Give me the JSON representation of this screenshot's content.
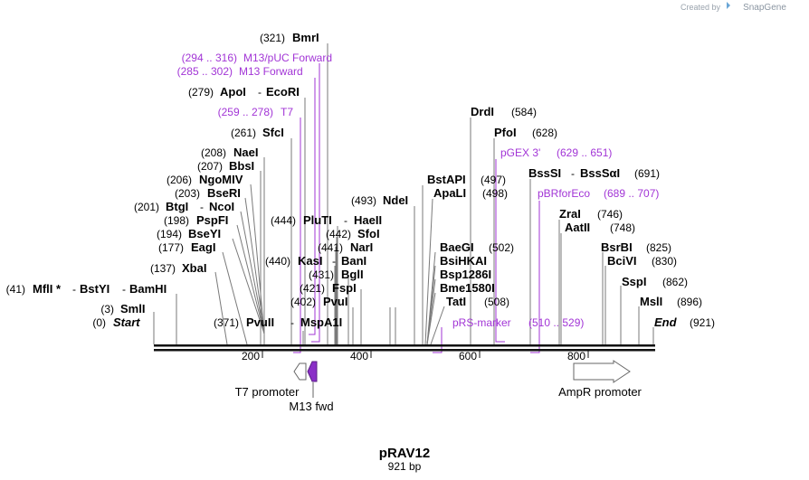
{
  "credit": {
    "created_by": "Created by",
    "logo": "SnapGene"
  },
  "plasmid": {
    "name": "pRAV12",
    "length": "921 bp"
  },
  "axis": {
    "ticks": [
      "200",
      "400",
      "600",
      "800"
    ]
  },
  "sites": {
    "bmri": {
      "pos": "(321)",
      "name": "BmrI"
    },
    "apoi": {
      "pos": "(279)",
      "name": "ApoI",
      "sep": "-",
      "name2": "EcoRI"
    },
    "sfci": {
      "pos": "(261)",
      "name": "SfcI"
    },
    "naei": {
      "pos": "(208)",
      "name": "NaeI"
    },
    "bbsi": {
      "pos": "(207)",
      "name": "BbsI"
    },
    "ngomiv": {
      "pos": "(206)",
      "name": "NgoMIV"
    },
    "bseri": {
      "pos": "(203)",
      "name": "BseRI"
    },
    "btgi": {
      "pos": "(201)",
      "name": "BtgI",
      "sep": "-",
      "name2": "NcoI"
    },
    "pspfi": {
      "pos": "(198)",
      "name": "PspFI"
    },
    "bseyi": {
      "pos": "(194)",
      "name": "BseYI"
    },
    "eagi": {
      "pos": "(177)",
      "name": "EagI"
    },
    "xbai": {
      "pos": "(137)",
      "name": "XbaI"
    },
    "mfli": {
      "pos": "(41)",
      "name": "MflI *",
      "sep": "-",
      "name2": "BstYI",
      "sep2": "-",
      "name3": "BamHI"
    },
    "smli": {
      "pos": "(3)",
      "name": "SmlI"
    },
    "start": {
      "pos": "(0)",
      "name": "Start"
    },
    "pvuii": {
      "pos": "(371)",
      "name": "PvuII",
      "sep": "-",
      "name2": "MspA1I"
    },
    "pluti": {
      "pos": "(444)",
      "name": "PluTI",
      "sep": "-",
      "name2": "HaeII"
    },
    "sfoi": {
      "pos": "(442)",
      "name": "SfoI"
    },
    "nari": {
      "pos": "(441)",
      "name": "NarI"
    },
    "kasi": {
      "pos": "(440)",
      "name": "KasI",
      "sep": "-",
      "name2": "BanI"
    },
    "bgli": {
      "pos": "(431)",
      "name": "BglI"
    },
    "fspi": {
      "pos": "(421)",
      "name": "FspI"
    },
    "pvui": {
      "pos": "(402)",
      "name": "PvuI"
    },
    "ndei": {
      "pos": "(493)",
      "name": "NdeI"
    },
    "bstapi": {
      "pos": "(497)",
      "name": "BstAPI"
    },
    "apali": {
      "pos": "(498)",
      "name": "ApaLI"
    },
    "drdi": {
      "pos": "(584)",
      "name": "DrdI"
    },
    "pfoi": {
      "pos": "(628)",
      "name": "PfoI"
    },
    "baegi": {
      "pos": "(502)",
      "name": "BaeGI"
    },
    "bsihkai": {
      "name": "BsiHKAI"
    },
    "bsp1286i": {
      "name": "Bsp1286I"
    },
    "bme1580i": {
      "name": "Bme1580I"
    },
    "tati": {
      "pos": "(508)",
      "name": "TatI"
    },
    "bsssi": {
      "pos": "(691)",
      "name": "BssSI",
      "sep": "-",
      "name2": "BssSαI"
    },
    "zrai": {
      "pos": "(746)",
      "name": "ZraI"
    },
    "aatii": {
      "pos": "(748)",
      "name": "AatII"
    },
    "bsrbi": {
      "pos": "(825)",
      "name": "BsrBI"
    },
    "bcivi": {
      "pos": "(830)",
      "name": "BciVI"
    },
    "sspi": {
      "pos": "(862)",
      "name": "SspI"
    },
    "msli": {
      "pos": "(896)",
      "name": "MslI"
    },
    "end": {
      "pos": "(921)",
      "name": "End"
    }
  },
  "primers": {
    "m13puc": {
      "range": "(294 .. 316)",
      "name": "M13/pUC Forward"
    },
    "m13fwd_long": {
      "range": "(285 .. 302)",
      "name": "M13 Forward"
    },
    "t7": {
      "range": "(259 .. 278)",
      "name": "T7"
    },
    "pgex3": {
      "name": "pGEX 3'",
      "range": "(629 .. 651)"
    },
    "pbrforeco": {
      "name": "pBRforEco",
      "range": "(689 .. 707)"
    },
    "prsmarker": {
      "name": "pRS-marker",
      "range": "(510 .. 529)"
    }
  },
  "features": {
    "t7_promoter": "T7 promoter",
    "m13_fwd": "M13 fwd",
    "ampr_promoter": "AmpR promoter"
  },
  "colors": {
    "primer": "#a235d6",
    "line": "#7a7a7a",
    "backbone": "#111111"
  }
}
